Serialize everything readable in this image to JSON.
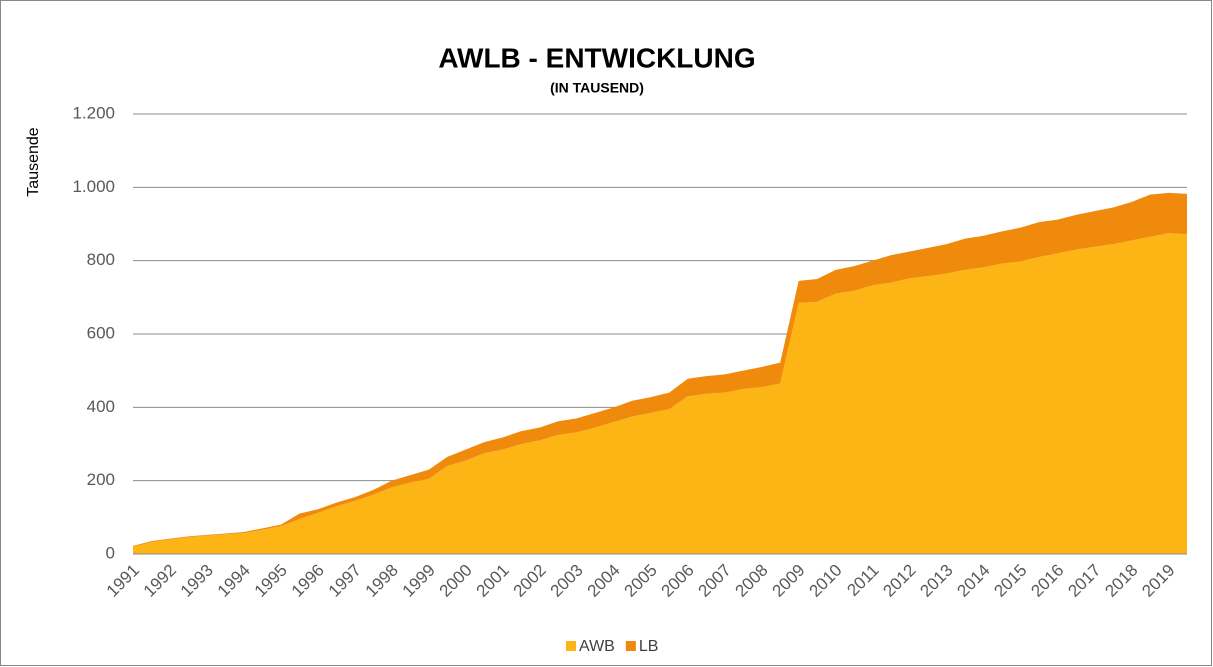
{
  "chart_data": {
    "type": "area",
    "stacked": true,
    "title": "AWLB - ENTWICKLUNG",
    "subtitle": "(IN TAUSEND)",
    "y_label": "Tausende",
    "categories": [
      "1991",
      null,
      "1992",
      null,
      "1993",
      null,
      "1994",
      null,
      "1995",
      null,
      "1996",
      null,
      "1997",
      null,
      "1998",
      null,
      "1999",
      null,
      "2000",
      null,
      "2001",
      null,
      "2002",
      null,
      "2003",
      null,
      "2004",
      null,
      "2005",
      null,
      "2006",
      null,
      "2007",
      null,
      "2008",
      null,
      "2009",
      null,
      "2010",
      null,
      "2011",
      null,
      "2012",
      null,
      "2013",
      null,
      "2014",
      null,
      "2015",
      null,
      "2016",
      null,
      "2017",
      null,
      "2018",
      null,
      "2019",
      null
    ],
    "series": [
      {
        "name": "AWB",
        "color": "#fdb515",
        "values": [
          20,
          32,
          40,
          46,
          50,
          54,
          57,
          66,
          76,
          95,
          112,
          130,
          145,
          162,
          182,
          195,
          205,
          240,
          255,
          275,
          285,
          300,
          310,
          325,
          332,
          345,
          360,
          375,
          385,
          395,
          430,
          437,
          440,
          450,
          455,
          465,
          685,
          688,
          710,
          718,
          733,
          740,
          752,
          758,
          765,
          775,
          782,
          792,
          798,
          810,
          820,
          830,
          838,
          845,
          855,
          865,
          875,
          872
        ]
      },
      {
        "name": "LB",
        "color": "#f08a0c",
        "values": [
          2,
          3,
          2,
          2,
          2,
          2,
          3,
          4,
          4,
          15,
          10,
          10,
          10,
          13,
          18,
          20,
          25,
          25,
          30,
          30,
          33,
          35,
          35,
          37,
          38,
          40,
          40,
          43,
          43,
          45,
          48,
          48,
          50,
          50,
          55,
          57,
          60,
          62,
          65,
          67,
          67,
          75,
          73,
          77,
          80,
          85,
          86,
          88,
          92,
          95,
          92,
          95,
          97,
          100,
          105,
          115,
          110,
          110
        ]
      }
    ],
    "ylim": [
      0,
      1200
    ],
    "yticks": [
      0,
      200,
      400,
      600,
      800,
      {
        "value": 1000,
        "label": "1.000"
      },
      {
        "value": 1200,
        "label": "1.200"
      }
    ],
    "grid": true,
    "legend": "bottom"
  }
}
